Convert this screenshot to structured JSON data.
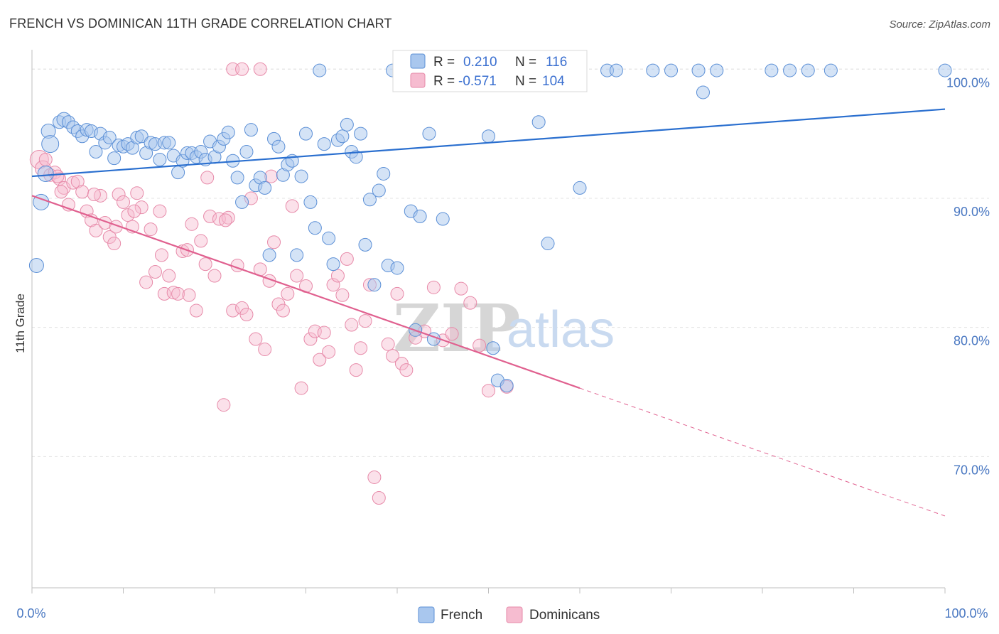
{
  "title": "FRENCH VS DOMINICAN 11TH GRADE CORRELATION CHART",
  "source": "Source: ZipAtlas.com",
  "watermark": {
    "zip": "ZIP",
    "atlas": "atlas"
  },
  "colors": {
    "french_fill": "#a9c7ee",
    "french_stroke": "#5b8fd6",
    "french_line": "#2a6fcf",
    "dominican_fill": "#f6bcd0",
    "dominican_stroke": "#e78aa9",
    "dominican_line": "#e0608f",
    "grid": "#e3e3e3",
    "tick_label": "#4a78c2"
  },
  "legend": {
    "rows": [
      {
        "r_label": "R =",
        "r_value": "0.210",
        "n_label": "N =",
        "n_value": "116",
        "series": "French"
      },
      {
        "r_label": "R =",
        "r_value": "-0.571",
        "n_label": "N =",
        "n_value": "104",
        "series": "Dominicans"
      }
    ]
  },
  "bottom_legend": [
    "French",
    "Dominicans"
  ],
  "chart_data": {
    "type": "scatter",
    "title": "FRENCH VS DOMINICAN 11TH GRADE CORRELATION CHART",
    "xlabel": "",
    "ylabel": "11th Grade",
    "xlim": [
      0,
      100
    ],
    "ylim": [
      60.5,
      101.5
    ],
    "x_tick_labels": [
      "0.0%",
      "100.0%"
    ],
    "y_ticks": [
      70,
      80,
      90,
      100
    ],
    "y_tick_labels": [
      "70.0%",
      "80.0%",
      "90.0%",
      "100.0%"
    ],
    "grid": true,
    "legend_position": "top-center",
    "series": [
      {
        "name": "French",
        "r": 0.21,
        "n": 116,
        "trend": {
          "x": [
            0,
            100
          ],
          "y": [
            91.7,
            96.9
          ],
          "dashed_from": null
        },
        "points": [
          [
            1.0,
            89.7,
            22
          ],
          [
            0.5,
            84.8,
            20
          ],
          [
            1.5,
            91.9,
            22
          ],
          [
            1.8,
            95.2,
            20
          ],
          [
            2.0,
            94.2,
            24
          ],
          [
            3.0,
            95.9,
            18
          ],
          [
            3.5,
            96.1,
            20
          ],
          [
            4.0,
            95.9,
            18
          ],
          [
            4.5,
            95.5,
            18
          ],
          [
            5.0,
            95.2,
            18
          ],
          [
            5.5,
            94.8,
            18
          ],
          [
            6.0,
            95.3,
            18
          ],
          [
            6.5,
            95.2,
            18
          ],
          [
            7.0,
            93.6,
            18
          ],
          [
            7.5,
            95.0,
            18
          ],
          [
            8.0,
            94.3,
            18
          ],
          [
            8.5,
            94.7,
            18
          ],
          [
            9.0,
            93.1,
            18
          ],
          [
            9.5,
            94.1,
            18
          ],
          [
            10.0,
            94.0,
            18
          ],
          [
            10.5,
            94.2,
            18
          ],
          [
            11.0,
            93.9,
            18
          ],
          [
            11.5,
            94.7,
            18
          ],
          [
            12.0,
            94.8,
            18
          ],
          [
            12.5,
            93.5,
            18
          ],
          [
            13.0,
            94.3,
            18
          ],
          [
            13.5,
            94.2,
            18
          ],
          [
            14.0,
            93.0,
            18
          ],
          [
            14.5,
            94.3,
            18
          ],
          [
            15.0,
            94.3,
            18
          ],
          [
            15.5,
            93.3,
            18
          ],
          [
            16.0,
            92.0,
            18
          ],
          [
            16.5,
            92.9,
            18
          ],
          [
            17.0,
            93.5,
            18
          ],
          [
            17.5,
            93.5,
            18
          ],
          [
            18.0,
            93.2,
            18
          ],
          [
            18.5,
            93.6,
            18
          ],
          [
            19.0,
            93.0,
            18
          ],
          [
            19.5,
            94.4,
            18
          ],
          [
            20.0,
            93.2,
            18
          ],
          [
            20.5,
            94.0,
            18
          ],
          [
            21.0,
            94.6,
            18
          ],
          [
            21.5,
            95.1,
            18
          ],
          [
            22.0,
            92.9,
            18
          ],
          [
            22.5,
            91.6,
            18
          ],
          [
            23.0,
            89.7,
            18
          ],
          [
            23.5,
            93.6,
            18
          ],
          [
            24.0,
            95.3,
            18
          ],
          [
            24.5,
            91.0,
            18
          ],
          [
            25.0,
            91.6,
            18
          ],
          [
            25.5,
            90.8,
            18
          ],
          [
            26.0,
            85.6,
            18
          ],
          [
            26.5,
            94.6,
            18
          ],
          [
            27.0,
            94.0,
            18
          ],
          [
            27.5,
            91.8,
            18
          ],
          [
            28.0,
            92.6,
            18
          ],
          [
            28.5,
            92.9,
            18
          ],
          [
            29.0,
            85.6,
            18
          ],
          [
            29.5,
            91.7,
            18
          ],
          [
            30.0,
            95.0,
            18
          ],
          [
            30.5,
            89.7,
            18
          ],
          [
            31.0,
            87.7,
            18
          ],
          [
            31.5,
            99.9,
            18
          ],
          [
            32.0,
            94.2,
            18
          ],
          [
            32.5,
            86.9,
            18
          ],
          [
            33.0,
            84.9,
            18
          ],
          [
            33.5,
            94.5,
            18
          ],
          [
            34.0,
            94.8,
            18
          ],
          [
            34.5,
            95.7,
            18
          ],
          [
            35.0,
            93.6,
            18
          ],
          [
            35.5,
            93.2,
            18
          ],
          [
            36.0,
            95.0,
            18
          ],
          [
            36.5,
            86.4,
            18
          ],
          [
            37.0,
            89.9,
            18
          ],
          [
            37.5,
            83.3,
            18
          ],
          [
            38.0,
            90.6,
            18
          ],
          [
            38.5,
            91.9,
            18
          ],
          [
            39.0,
            84.8,
            18
          ],
          [
            39.5,
            99.9,
            18
          ],
          [
            40.0,
            84.6,
            18
          ],
          [
            41.0,
            99.9,
            18
          ],
          [
            41.5,
            89.0,
            18
          ],
          [
            42.0,
            79.8,
            18
          ],
          [
            42.5,
            88.6,
            18
          ],
          [
            43.0,
            99.9,
            18
          ],
          [
            43.5,
            95.0,
            18
          ],
          [
            44.0,
            79.1,
            18
          ],
          [
            45.0,
            88.4,
            18
          ],
          [
            46.0,
            99.9,
            18
          ],
          [
            47.0,
            99.9,
            18
          ],
          [
            48.0,
            99.9,
            18
          ],
          [
            49.0,
            99.9,
            18
          ],
          [
            50.0,
            94.8,
            18
          ],
          [
            50.5,
            78.4,
            18
          ],
          [
            51.0,
            75.9,
            18
          ],
          [
            52.0,
            75.5,
            18
          ],
          [
            53.0,
            99.9,
            18
          ],
          [
            54.0,
            99.9,
            18
          ],
          [
            55.0,
            99.9,
            18
          ],
          [
            55.5,
            95.9,
            18
          ],
          [
            56.5,
            86.5,
            18
          ],
          [
            58.5,
            99.9,
            18
          ],
          [
            60.0,
            90.8,
            18
          ],
          [
            63.0,
            99.9,
            18
          ],
          [
            64.0,
            99.9,
            18
          ],
          [
            68.0,
            99.9,
            18
          ],
          [
            70.0,
            99.9,
            18
          ],
          [
            73.0,
            99.9,
            18
          ],
          [
            73.5,
            98.2,
            18
          ],
          [
            75.0,
            99.9,
            18
          ],
          [
            81.0,
            99.9,
            18
          ],
          [
            83.0,
            99.9,
            18
          ],
          [
            85.0,
            99.9,
            18
          ],
          [
            87.5,
            99.9,
            18
          ],
          [
            100.0,
            99.9,
            18
          ],
          [
            44.5,
            99.9,
            18
          ]
        ]
      },
      {
        "name": "Dominicans",
        "r": -0.571,
        "n": 104,
        "trend": {
          "x": [
            0,
            60,
            100
          ],
          "y": [
            90.2,
            75.3,
            65.4
          ],
          "dashed_from": 60
        },
        "points": [
          [
            0.8,
            93.0,
            26
          ],
          [
            1.2,
            92.3,
            22
          ],
          [
            1.5,
            93.0,
            18
          ],
          [
            2.0,
            91.8,
            18
          ],
          [
            2.5,
            92.0,
            18
          ],
          [
            3.0,
            91.5,
            18
          ],
          [
            3.5,
            90.8,
            18
          ],
          [
            4.0,
            89.5,
            18
          ],
          [
            4.5,
            91.2,
            18
          ],
          [
            5.0,
            91.3,
            18
          ],
          [
            5.5,
            90.5,
            18
          ],
          [
            6.0,
            89.0,
            18
          ],
          [
            6.5,
            88.3,
            18
          ],
          [
            7.0,
            87.5,
            18
          ],
          [
            7.5,
            90.2,
            18
          ],
          [
            8.0,
            88.1,
            18
          ],
          [
            8.5,
            87.0,
            18
          ],
          [
            9.0,
            86.5,
            18
          ],
          [
            9.5,
            90.3,
            18
          ],
          [
            10.0,
            89.7,
            18
          ],
          [
            10.5,
            88.7,
            18
          ],
          [
            11.0,
            87.8,
            18
          ],
          [
            11.5,
            90.4,
            18
          ],
          [
            12.0,
            89.3,
            18
          ],
          [
            12.5,
            83.5,
            18
          ],
          [
            13.0,
            87.6,
            18
          ],
          [
            13.5,
            84.3,
            18
          ],
          [
            14.0,
            89.0,
            18
          ],
          [
            14.5,
            82.6,
            18
          ],
          [
            15.0,
            84.0,
            18
          ],
          [
            15.5,
            82.7,
            18
          ],
          [
            16.0,
            82.6,
            18
          ],
          [
            16.5,
            85.9,
            18
          ],
          [
            17.0,
            86.0,
            18
          ],
          [
            17.5,
            88.0,
            18
          ],
          [
            18.0,
            81.3,
            18
          ],
          [
            18.5,
            86.7,
            18
          ],
          [
            19.0,
            84.9,
            18
          ],
          [
            19.5,
            88.6,
            18
          ],
          [
            20.0,
            84.0,
            18
          ],
          [
            20.5,
            88.4,
            18
          ],
          [
            21.0,
            74.0,
            18
          ],
          [
            21.5,
            88.5,
            18
          ],
          [
            22.0,
            81.3,
            18
          ],
          [
            22.5,
            84.8,
            18
          ],
          [
            23.0,
            81.5,
            18
          ],
          [
            23.5,
            81.0,
            18
          ],
          [
            24.0,
            90.0,
            18
          ],
          [
            24.5,
            79.1,
            18
          ],
          [
            25.0,
            84.5,
            18
          ],
          [
            25.5,
            78.3,
            18
          ],
          [
            26.0,
            83.6,
            18
          ],
          [
            26.5,
            86.6,
            18
          ],
          [
            27.0,
            81.8,
            18
          ],
          [
            27.5,
            81.3,
            18
          ],
          [
            28.0,
            82.6,
            18
          ],
          [
            28.5,
            89.4,
            18
          ],
          [
            29.0,
            84.0,
            18
          ],
          [
            29.5,
            75.3,
            18
          ],
          [
            30.0,
            83.2,
            18
          ],
          [
            30.5,
            79.1,
            18
          ],
          [
            31.0,
            79.7,
            18
          ],
          [
            31.5,
            77.5,
            18
          ],
          [
            32.0,
            79.6,
            18
          ],
          [
            32.5,
            78.1,
            18
          ],
          [
            33.0,
            83.3,
            18
          ],
          [
            33.5,
            84.0,
            18
          ],
          [
            34.0,
            82.5,
            18
          ],
          [
            34.5,
            85.3,
            18
          ],
          [
            35.0,
            80.2,
            18
          ],
          [
            35.5,
            76.7,
            18
          ],
          [
            36.0,
            78.4,
            18
          ],
          [
            36.5,
            80.5,
            18
          ],
          [
            37.0,
            83.3,
            18
          ],
          [
            37.5,
            68.4,
            18
          ],
          [
            38.0,
            66.8,
            18
          ],
          [
            39.0,
            78.7,
            18
          ],
          [
            39.5,
            77.8,
            18
          ],
          [
            40.0,
            82.6,
            18
          ],
          [
            40.5,
            77.2,
            18
          ],
          [
            41.0,
            76.7,
            18
          ],
          [
            42.0,
            79.2,
            18
          ],
          [
            43.0,
            79.7,
            18
          ],
          [
            44.0,
            83.1,
            18
          ],
          [
            45.0,
            79.0,
            18
          ],
          [
            46.0,
            79.5,
            18
          ],
          [
            47.0,
            83.0,
            18
          ],
          [
            48.0,
            81.9,
            18
          ],
          [
            49.0,
            78.6,
            18
          ],
          [
            50.0,
            75.1,
            18
          ],
          [
            52.0,
            75.4,
            18
          ],
          [
            22.0,
            100.0,
            18
          ],
          [
            23.0,
            100.0,
            18
          ],
          [
            25.0,
            100.0,
            18
          ],
          [
            2.8,
            91.7,
            18
          ],
          [
            3.2,
            90.5,
            18
          ],
          [
            6.8,
            90.3,
            18
          ],
          [
            9.2,
            87.8,
            18
          ],
          [
            11.2,
            89.0,
            18
          ],
          [
            14.2,
            85.6,
            18
          ],
          [
            17.2,
            82.5,
            18
          ],
          [
            19.2,
            91.6,
            18
          ],
          [
            21.2,
            88.3,
            18
          ],
          [
            26.2,
            91.7,
            18
          ]
        ]
      }
    ]
  }
}
